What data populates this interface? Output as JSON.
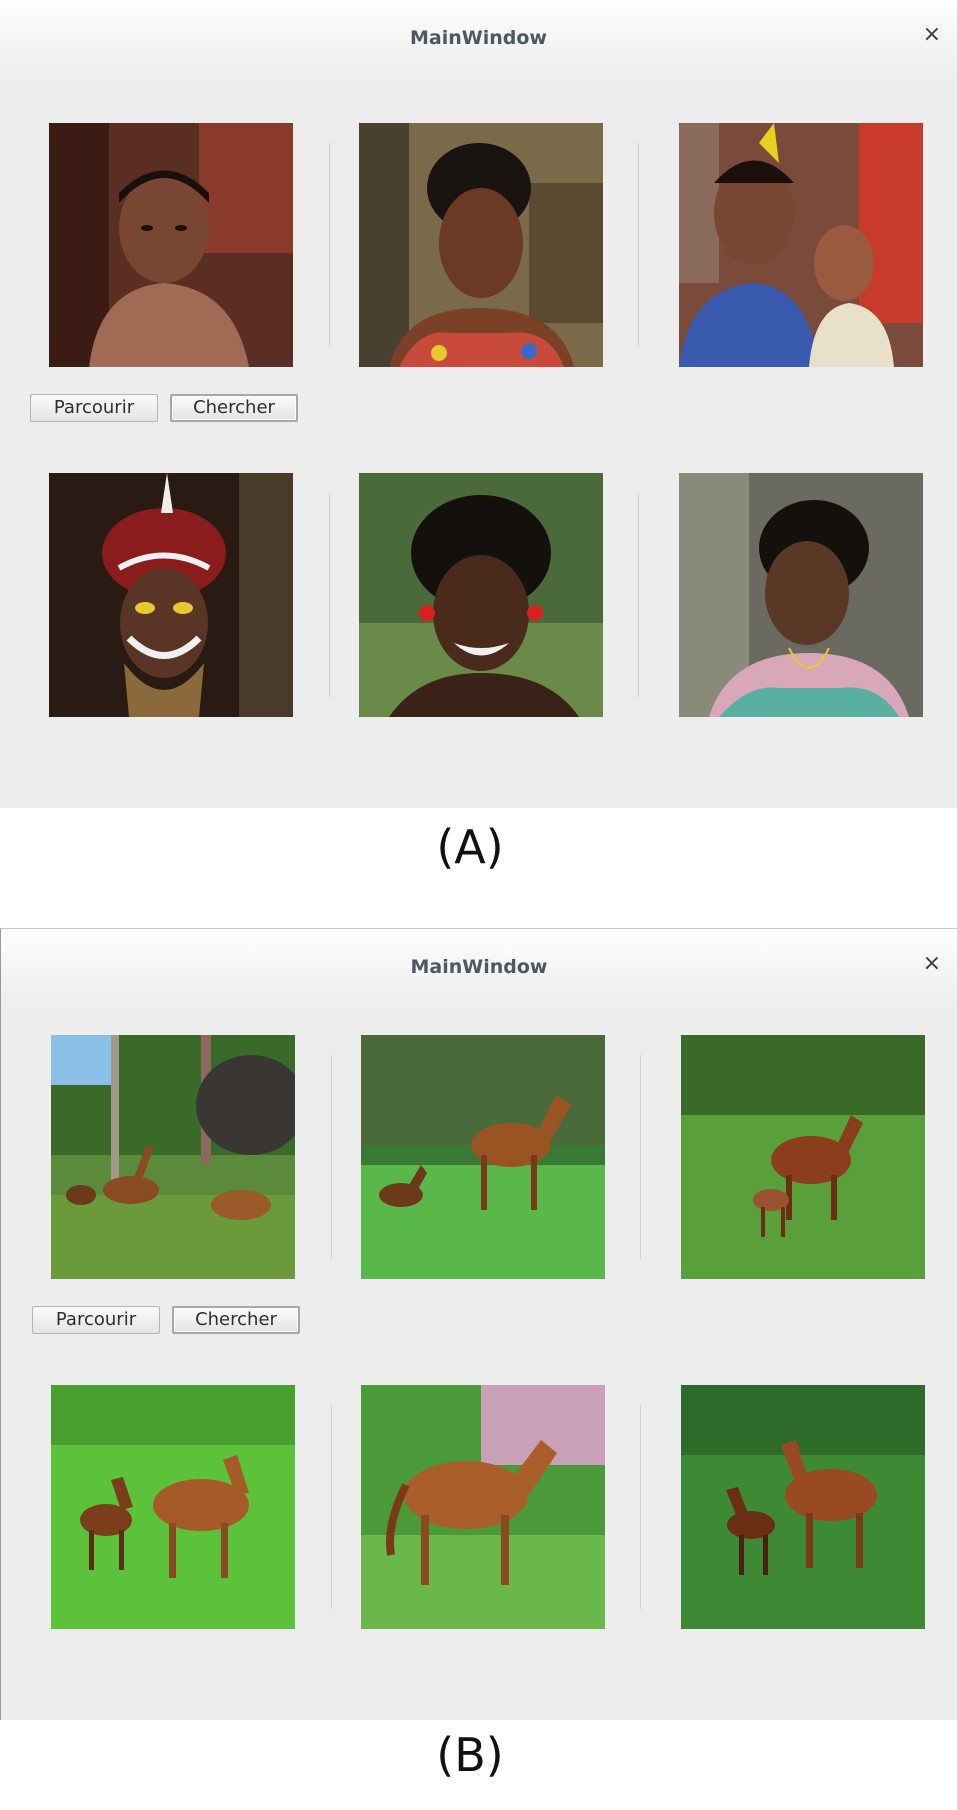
{
  "windows": [
    {
      "title": "MainWindow",
      "close_glyph": "×",
      "browse_label": "Parcourir",
      "search_label": "Chercher",
      "images": [
        {
          "icon": "boy-portrait-image"
        },
        {
          "icon": "woman-portrait-image"
        },
        {
          "icon": "mother-child-image"
        },
        {
          "icon": "headdress-man-image"
        },
        {
          "icon": "smiling-man-image"
        },
        {
          "icon": "older-woman-image"
        }
      ]
    },
    {
      "title": "MainWindow",
      "close_glyph": "×",
      "browse_label": "Parcourir",
      "search_label": "Chercher",
      "images": [
        {
          "icon": "horses-forest-image"
        },
        {
          "icon": "horse-foal-meadow-image"
        },
        {
          "icon": "mare-foal-grass-image"
        },
        {
          "icon": "two-horses-grass-image"
        },
        {
          "icon": "horse-standing-image"
        },
        {
          "icon": "horse-foal-field-image"
        }
      ]
    }
  ],
  "captions": {
    "a": "(A)",
    "b": "(B)"
  },
  "colors": {
    "window_bg": "#ededed",
    "title_text": "#4b5963",
    "skin": "#6b3e26",
    "grass": "#5fbf3a",
    "horse": "#8e4a22"
  }
}
